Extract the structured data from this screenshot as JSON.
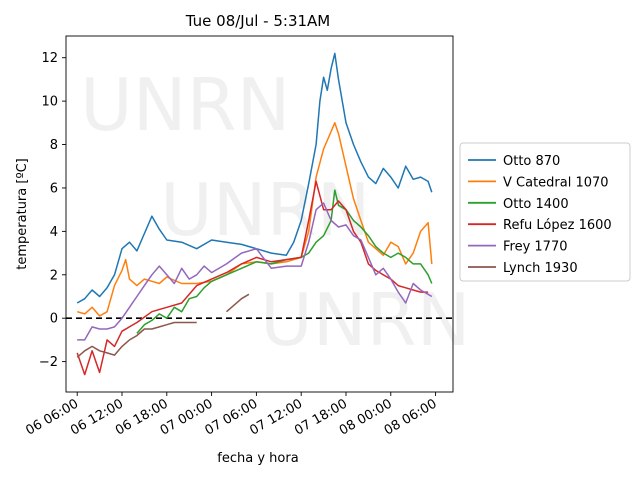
{
  "chart_data": {
    "type": "line",
    "title": "Tue 08/Jul - 5:31AM",
    "xlabel": "fecha y hora",
    "ylabel": "temperatura [ºC]",
    "xlim": [
      "2025-07-06 04:30",
      "2025-07-08 08:20"
    ],
    "ylim": [
      -3.4,
      13.0
    ],
    "x_ticks": [
      "2025-07-06 06:00",
      "2025-07-06 12:00",
      "2025-07-06 18:00",
      "2025-07-07 00:00",
      "2025-07-07 06:00",
      "2025-07-07 12:00",
      "2025-07-07 18:00",
      "2025-07-08 00:00",
      "2025-07-08 06:00"
    ],
    "x_tick_labels": [
      "06 06:00",
      "06 12:00",
      "06 18:00",
      "07 00:00",
      "07 06:00",
      "07 12:00",
      "07 18:00",
      "08 00:00",
      "08 06:00"
    ],
    "y_ticks": [
      -2,
      0,
      2,
      4,
      6,
      8,
      10,
      12
    ],
    "y_tick_labels": [
      "−2",
      "0",
      "2",
      "4",
      "6",
      "8",
      "10",
      "12"
    ],
    "reference_line": {
      "y": 0,
      "style": "dashed",
      "color": "#000000"
    },
    "legend_position": "center-right",
    "watermark": [
      "UNRN",
      "UNRN",
      "UNRN"
    ],
    "series": [
      {
        "name": "Otto 870",
        "color": "#1f77b4",
        "points": [
          [
            "2025-07-06 06:00",
            0.7
          ],
          [
            "2025-07-06 07:00",
            0.9
          ],
          [
            "2025-07-06 08:00",
            1.3
          ],
          [
            "2025-07-06 09:00",
            1.0
          ],
          [
            "2025-07-06 10:00",
            1.4
          ],
          [
            "2025-07-06 11:00",
            2.0
          ],
          [
            "2025-07-06 12:00",
            3.2
          ],
          [
            "2025-07-06 13:00",
            3.5
          ],
          [
            "2025-07-06 14:00",
            3.1
          ],
          [
            "2025-07-06 15:00",
            3.9
          ],
          [
            "2025-07-06 16:00",
            4.7
          ],
          [
            "2025-07-06 17:00",
            4.1
          ],
          [
            "2025-07-06 18:00",
            3.6
          ],
          [
            "2025-07-06 20:00",
            3.5
          ],
          [
            "2025-07-06 22:00",
            3.2
          ],
          [
            "2025-07-07 00:00",
            3.6
          ],
          [
            "2025-07-07 02:00",
            3.5
          ],
          [
            "2025-07-07 04:00",
            3.4
          ],
          [
            "2025-07-07 06:00",
            3.2
          ],
          [
            "2025-07-07 08:00",
            3.0
          ],
          [
            "2025-07-07 10:00",
            2.9
          ],
          [
            "2025-07-07 11:00",
            3.5
          ],
          [
            "2025-07-07 12:00",
            4.5
          ],
          [
            "2025-07-07 13:00",
            6.2
          ],
          [
            "2025-07-07 14:00",
            8.0
          ],
          [
            "2025-07-07 14:30",
            10.0
          ],
          [
            "2025-07-07 15:00",
            11.1
          ],
          [
            "2025-07-07 15:30",
            10.5
          ],
          [
            "2025-07-07 16:00",
            11.5
          ],
          [
            "2025-07-07 16:30",
            12.2
          ],
          [
            "2025-07-07 17:00",
            11.0
          ],
          [
            "2025-07-07 18:00",
            9.0
          ],
          [
            "2025-07-07 19:00",
            8.0
          ],
          [
            "2025-07-07 20:00",
            7.2
          ],
          [
            "2025-07-07 21:00",
            6.5
          ],
          [
            "2025-07-07 22:00",
            6.2
          ],
          [
            "2025-07-07 23:00",
            6.9
          ],
          [
            "2025-07-08 00:00",
            6.5
          ],
          [
            "2025-07-08 01:00",
            6.0
          ],
          [
            "2025-07-08 02:00",
            7.0
          ],
          [
            "2025-07-08 03:00",
            6.4
          ],
          [
            "2025-07-08 04:00",
            6.5
          ],
          [
            "2025-07-08 05:00",
            6.3
          ],
          [
            "2025-07-08 05:30",
            5.8
          ]
        ]
      },
      {
        "name": "V Catedral 1070",
        "color": "#ff7f0e",
        "points": [
          [
            "2025-07-06 06:00",
            0.3
          ],
          [
            "2025-07-06 07:00",
            0.2
          ],
          [
            "2025-07-06 08:00",
            0.5
          ],
          [
            "2025-07-06 09:00",
            0.1
          ],
          [
            "2025-07-06 10:00",
            0.3
          ],
          [
            "2025-07-06 11:00",
            1.5
          ],
          [
            "2025-07-06 12:00",
            2.2
          ],
          [
            "2025-07-06 12:30",
            2.7
          ],
          [
            "2025-07-06 13:00",
            1.8
          ],
          [
            "2025-07-06 14:00",
            1.5
          ],
          [
            "2025-07-06 15:00",
            1.8
          ],
          [
            "2025-07-06 16:00",
            1.7
          ],
          [
            "2025-07-06 17:00",
            1.6
          ],
          [
            "2025-07-06 18:00",
            1.9
          ],
          [
            "2025-07-06 20:00",
            1.6
          ],
          [
            "2025-07-06 22:00",
            1.6
          ],
          [
            "2025-07-07 00:00",
            1.7
          ],
          [
            "2025-07-07 02:00",
            2.0
          ],
          [
            "2025-07-07 04:00",
            2.5
          ],
          [
            "2025-07-07 06:00",
            2.6
          ],
          [
            "2025-07-07 08:00",
            2.5
          ],
          [
            "2025-07-07 10:00",
            2.6
          ],
          [
            "2025-07-07 12:00",
            2.8
          ],
          [
            "2025-07-07 13:00",
            4.0
          ],
          [
            "2025-07-07 14:00",
            6.5
          ],
          [
            "2025-07-07 15:00",
            7.8
          ],
          [
            "2025-07-07 16:00",
            8.6
          ],
          [
            "2025-07-07 16:30",
            9.0
          ],
          [
            "2025-07-07 17:00",
            8.5
          ],
          [
            "2025-07-07 18:00",
            7.0
          ],
          [
            "2025-07-07 19:00",
            5.5
          ],
          [
            "2025-07-07 20:00",
            4.5
          ],
          [
            "2025-07-07 21:00",
            3.5
          ],
          [
            "2025-07-07 22:00",
            3.2
          ],
          [
            "2025-07-07 23:00",
            2.9
          ],
          [
            "2025-07-08 00:00",
            3.5
          ],
          [
            "2025-07-08 01:00",
            3.3
          ],
          [
            "2025-07-08 02:00",
            2.5
          ],
          [
            "2025-07-08 03:00",
            3.0
          ],
          [
            "2025-07-08 04:00",
            4.0
          ],
          [
            "2025-07-08 05:00",
            4.4
          ],
          [
            "2025-07-08 05:30",
            2.5
          ]
        ]
      },
      {
        "name": "Otto 1400",
        "color": "#2ca02c",
        "points": [
          [
            "2025-07-06 14:00",
            -0.7
          ],
          [
            "2025-07-06 15:00",
            -0.3
          ],
          [
            "2025-07-06 16:00",
            -0.1
          ],
          [
            "2025-07-06 17:00",
            0.2
          ],
          [
            "2025-07-06 18:00",
            0.0
          ],
          [
            "2025-07-06 19:00",
            0.5
          ],
          [
            "2025-07-06 20:00",
            0.3
          ],
          [
            "2025-07-06 21:00",
            0.9
          ],
          [
            "2025-07-06 22:00",
            1.0
          ],
          [
            "2025-07-06 23:00",
            1.4
          ],
          [
            "2025-07-07 00:00",
            1.7
          ],
          [
            "2025-07-07 02:00",
            2.0
          ],
          [
            "2025-07-07 04:00",
            2.3
          ],
          [
            "2025-07-07 06:00",
            2.6
          ],
          [
            "2025-07-07 08:00",
            2.5
          ],
          [
            "2025-07-07 10:00",
            2.7
          ],
          [
            "2025-07-07 12:00",
            2.8
          ],
          [
            "2025-07-07 13:00",
            3.0
          ],
          [
            "2025-07-07 14:00",
            3.5
          ],
          [
            "2025-07-07 15:00",
            3.8
          ],
          [
            "2025-07-07 16:00",
            4.5
          ],
          [
            "2025-07-07 16:30",
            5.9
          ],
          [
            "2025-07-07 17:00",
            5.2
          ],
          [
            "2025-07-07 18:00",
            5.0
          ],
          [
            "2025-07-07 19:00",
            4.5
          ],
          [
            "2025-07-07 20:00",
            4.2
          ],
          [
            "2025-07-07 21:00",
            3.8
          ],
          [
            "2025-07-07 22:00",
            3.3
          ],
          [
            "2025-07-07 23:00",
            3.0
          ],
          [
            "2025-07-08 00:00",
            2.8
          ],
          [
            "2025-07-08 01:00",
            3.0
          ],
          [
            "2025-07-08 02:00",
            2.8
          ],
          [
            "2025-07-08 03:00",
            2.5
          ],
          [
            "2025-07-08 04:00",
            2.5
          ],
          [
            "2025-07-08 05:00",
            2.0
          ],
          [
            "2025-07-08 05:30",
            1.6
          ]
        ]
      },
      {
        "name": "Refu López 1600",
        "color": "#d62728",
        "points": [
          [
            "2025-07-06 06:00",
            -1.6
          ],
          [
            "2025-07-06 07:00",
            -2.6
          ],
          [
            "2025-07-06 08:00",
            -1.5
          ],
          [
            "2025-07-06 09:00",
            -2.5
          ],
          [
            "2025-07-06 10:00",
            -1.0
          ],
          [
            "2025-07-06 11:00",
            -1.3
          ],
          [
            "2025-07-06 12:00",
            -0.6
          ],
          [
            "2025-07-06 14:00",
            -0.2
          ],
          [
            "2025-07-06 16:00",
            0.3
          ],
          [
            "2025-07-06 18:00",
            0.5
          ],
          [
            "2025-07-06 20:00",
            0.7
          ],
          [
            "2025-07-06 22:00",
            1.5
          ],
          [
            "2025-07-07 00:00",
            1.8
          ],
          [
            "2025-07-07 02:00",
            2.1
          ],
          [
            "2025-07-07 04:00",
            2.5
          ],
          [
            "2025-07-07 06:00",
            2.8
          ],
          [
            "2025-07-07 08:00",
            2.6
          ],
          [
            "2025-07-07 10:00",
            2.7
          ],
          [
            "2025-07-07 12:00",
            2.8
          ],
          [
            "2025-07-07 13:00",
            4.5
          ],
          [
            "2025-07-07 14:00",
            6.3
          ],
          [
            "2025-07-07 15:00",
            5.0
          ],
          [
            "2025-07-07 16:00",
            5.0
          ],
          [
            "2025-07-07 17:00",
            5.4
          ],
          [
            "2025-07-07 18:00",
            5.0
          ],
          [
            "2025-07-07 19:00",
            4.0
          ],
          [
            "2025-07-07 20:00",
            3.5
          ],
          [
            "2025-07-07 21:00",
            2.5
          ],
          [
            "2025-07-07 22:00",
            2.2
          ],
          [
            "2025-07-07 23:00",
            2.0
          ],
          [
            "2025-07-08 00:00",
            1.8
          ],
          [
            "2025-07-08 01:00",
            1.5
          ],
          [
            "2025-07-08 02:00",
            1.4
          ],
          [
            "2025-07-08 03:00",
            1.3
          ],
          [
            "2025-07-08 04:00",
            1.2
          ],
          [
            "2025-07-08 05:00",
            1.2
          ]
        ]
      },
      {
        "name": "Frey 1770",
        "color": "#9467bd",
        "points": [
          [
            "2025-07-06 06:00",
            -1.0
          ],
          [
            "2025-07-06 07:00",
            -1.0
          ],
          [
            "2025-07-06 08:00",
            -0.4
          ],
          [
            "2025-07-06 09:00",
            -0.5
          ],
          [
            "2025-07-06 10:00",
            -0.5
          ],
          [
            "2025-07-06 11:00",
            -0.4
          ],
          [
            "2025-07-06 12:00",
            0.0
          ],
          [
            "2025-07-06 13:00",
            0.5
          ],
          [
            "2025-07-06 14:00",
            1.0
          ],
          [
            "2025-07-06 15:00",
            1.5
          ],
          [
            "2025-07-06 16:00",
            2.0
          ],
          [
            "2025-07-06 17:00",
            2.4
          ],
          [
            "2025-07-06 18:00",
            2.0
          ],
          [
            "2025-07-06 19:00",
            1.6
          ],
          [
            "2025-07-06 20:00",
            2.3
          ],
          [
            "2025-07-06 21:00",
            1.8
          ],
          [
            "2025-07-06 22:00",
            2.0
          ],
          [
            "2025-07-06 23:00",
            2.4
          ],
          [
            "2025-07-07 00:00",
            2.1
          ],
          [
            "2025-07-07 02:00",
            2.5
          ],
          [
            "2025-07-07 04:00",
            3.0
          ],
          [
            "2025-07-07 06:00",
            3.2
          ],
          [
            "2025-07-07 08:00",
            2.3
          ],
          [
            "2025-07-07 10:00",
            2.4
          ],
          [
            "2025-07-07 12:00",
            2.4
          ],
          [
            "2025-07-07 13:00",
            3.5
          ],
          [
            "2025-07-07 14:00",
            5.0
          ],
          [
            "2025-07-07 15:00",
            5.3
          ],
          [
            "2025-07-07 16:00",
            4.5
          ],
          [
            "2025-07-07 17:00",
            4.2
          ],
          [
            "2025-07-07 18:00",
            4.3
          ],
          [
            "2025-07-07 19:00",
            3.8
          ],
          [
            "2025-07-07 20:00",
            3.6
          ],
          [
            "2025-07-07 21:00",
            2.8
          ],
          [
            "2025-07-07 22:00",
            2.0
          ],
          [
            "2025-07-07 23:00",
            2.3
          ],
          [
            "2025-07-08 00:00",
            1.8
          ],
          [
            "2025-07-08 01:00",
            1.2
          ],
          [
            "2025-07-08 02:00",
            0.7
          ],
          [
            "2025-07-08 03:00",
            1.6
          ],
          [
            "2025-07-08 04:00",
            1.3
          ],
          [
            "2025-07-08 05:00",
            1.1
          ],
          [
            "2025-07-08 05:30",
            1.0
          ]
        ]
      },
      {
        "name": "Lynch 1930",
        "color": "#8c564b",
        "points": [
          [
            "2025-07-06 06:00",
            -1.8
          ],
          [
            "2025-07-06 07:00",
            -1.5
          ],
          [
            "2025-07-06 08:00",
            -1.3
          ],
          [
            "2025-07-06 09:00",
            -1.5
          ],
          [
            "2025-07-06 10:00",
            -1.6
          ],
          [
            "2025-07-06 11:00",
            -1.7
          ],
          [
            "2025-07-06 12:00",
            -1.3
          ],
          [
            "2025-07-06 13:00",
            -1.0
          ],
          [
            "2025-07-06 14:00",
            -0.8
          ],
          [
            "2025-07-06 15:00",
            -0.5
          ],
          [
            "2025-07-06 16:00",
            -0.5
          ],
          [
            "2025-07-06 17:00",
            -0.4
          ],
          [
            "2025-07-06 18:00",
            -0.3
          ],
          [
            "2025-07-06 19:00",
            -0.2
          ],
          [
            "2025-07-06 20:00",
            -0.2
          ],
          [
            "2025-07-06 21:00",
            -0.2
          ],
          [
            "2025-07-06 22:00",
            -0.2
          ],
          [
            null,
            null
          ],
          [
            "2025-07-07 02:00",
            0.3
          ],
          [
            "2025-07-07 03:00",
            0.6
          ],
          [
            "2025-07-07 04:00",
            0.9
          ],
          [
            "2025-07-07 05:00",
            1.1
          ]
        ]
      }
    ]
  }
}
